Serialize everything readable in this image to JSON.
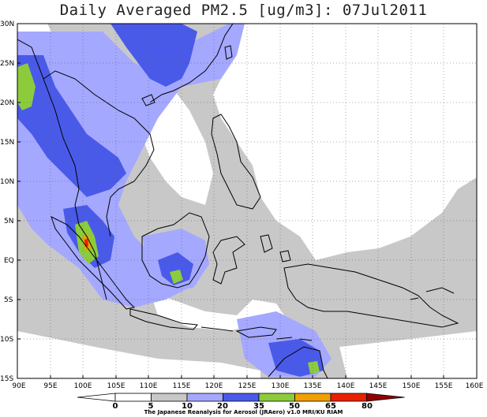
{
  "title": "Daily Averaged PM2.5 [ug/m3]: 07Jul2011",
  "lat_labels": [
    "30N",
    "25N",
    "20N",
    "15N",
    "10N",
    "5N",
    "EQ",
    "5S",
    "10S",
    "15S"
  ],
  "lon_labels": [
    "90E",
    "95E",
    "100E",
    "105E",
    "110E",
    "115E",
    "120E",
    "125E",
    "130E",
    "135E",
    "140E",
    "145E",
    "150E",
    "155E",
    "160E"
  ],
  "colorbar": {
    "levels": [
      "0",
      "5",
      "10",
      "20",
      "35",
      "50",
      "65",
      "80"
    ],
    "colors": [
      "#ffffff",
      "#ffffff",
      "#c8c8c8",
      "#a4a8ff",
      "#4a5ae8",
      "#8ccc3c",
      "#f0a000",
      "#e82000",
      "#900000"
    ]
  },
  "credit": "The Japanese Reanalysis for Aerosol (JRAero) v1.0 MRI/KU RIAM"
}
